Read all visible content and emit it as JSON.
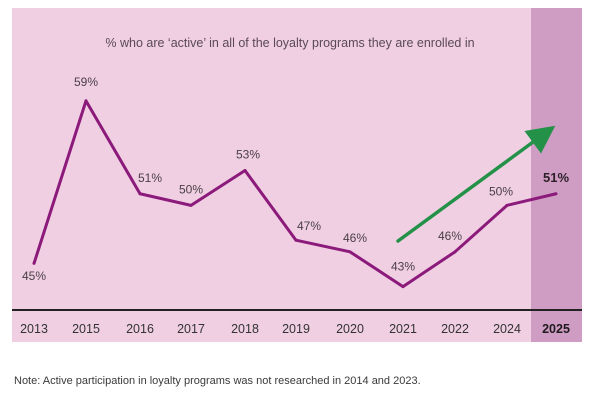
{
  "chart_data": {
    "type": "line",
    "title": "% who are ‘active’ in all of the loyalty programs they are enrolled in",
    "categories": [
      "2013",
      "2015",
      "2016",
      "2017",
      "2018",
      "2019",
      "2020",
      "2021",
      "2022",
      "2024",
      "2025"
    ],
    "values": [
      45,
      59,
      51,
      50,
      53,
      47,
      46,
      43,
      46,
      50,
      51
    ],
    "value_labels": [
      "45%",
      "59%",
      "51%",
      "50%",
      "53%",
      "47%",
      "46%",
      "43%",
      "46%",
      "50%",
      "51%"
    ],
    "highlighted_category": "2025",
    "trend_arrow": {
      "from_category": "2021",
      "to_category": "2025",
      "description": "upward trend"
    },
    "ylabel": "",
    "xlabel": "",
    "ylim": [
      40,
      62
    ],
    "grid": false,
    "legend": "none",
    "note": "Note: Active participation in loyalty programs was not researched in 2014 and 2023."
  },
  "colors": {
    "background": "#f0cfe3",
    "highlight_band": "#cf9dc4",
    "line": "#8b1a7a",
    "arrow": "#239147",
    "axis": "#222222"
  }
}
